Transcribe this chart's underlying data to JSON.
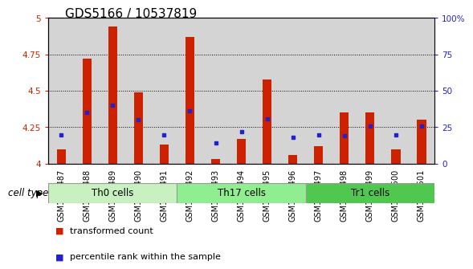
{
  "title": "GDS5166 / 10537819",
  "samples": [
    "GSM1350487",
    "GSM1350488",
    "GSM1350489",
    "GSM1350490",
    "GSM1350491",
    "GSM1350492",
    "GSM1350493",
    "GSM1350494",
    "GSM1350495",
    "GSM1350496",
    "GSM1350497",
    "GSM1350498",
    "GSM1350499",
    "GSM1350500",
    "GSM1350501"
  ],
  "red_values": [
    4.1,
    4.72,
    4.94,
    4.49,
    4.13,
    4.87,
    4.03,
    4.17,
    4.58,
    4.06,
    4.12,
    4.35,
    4.35,
    4.1,
    4.3
  ],
  "blue_percentiles": [
    20,
    35,
    40,
    30,
    20,
    36,
    14,
    22,
    31,
    18,
    20,
    19,
    26,
    20,
    26
  ],
  "cell_groups": [
    {
      "label": "Th0 cells",
      "start": 0,
      "end": 4
    },
    {
      "label": "Th17 cells",
      "start": 5,
      "end": 9
    },
    {
      "label": "Tr1 cells",
      "start": 10,
      "end": 14
    }
  ],
  "group_colors": [
    "#c8f0c0",
    "#90ee90",
    "#50c850"
  ],
  "ylim": [
    4.0,
    5.0
  ],
  "yticks": [
    4.0,
    4.25,
    4.5,
    4.75,
    5.0
  ],
  "ytick_labels": [
    "4",
    "4.25",
    "4.5",
    "4.75",
    "5"
  ],
  "right_yticks": [
    0,
    25,
    50,
    75,
    100
  ],
  "right_ytick_labels": [
    "0",
    "25",
    "50",
    "75",
    "100%"
  ],
  "bar_color": "#cc2200",
  "blue_color": "#2222cc",
  "col_bg_even": "#d4d4d4",
  "col_bg_odd": "#c4c4c4",
  "plot_bg": "#ffffff",
  "legend_red": "transformed count",
  "legend_blue": "percentile rank within the sample",
  "cell_type_label": "cell type",
  "title_fontsize": 11,
  "tick_fontsize": 7.5,
  "xtick_fontsize": 7.0
}
